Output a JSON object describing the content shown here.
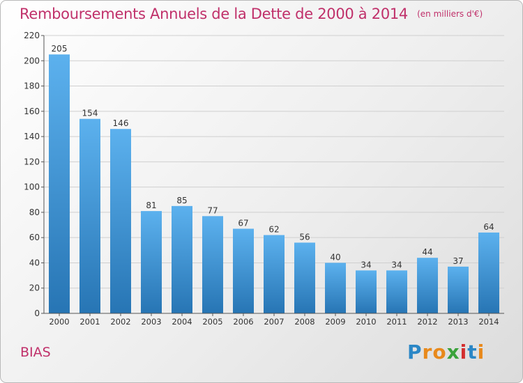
{
  "chart_data": {
    "type": "bar",
    "title": "Remboursements Annuels de la Dette de 2000 à 2014",
    "subtitle": "(en milliers d'€)",
    "categories": [
      "2000",
      "2001",
      "2002",
      "2003",
      "2004",
      "2005",
      "2006",
      "2007",
      "2008",
      "2009",
      "2010",
      "2011",
      "2012",
      "2013",
      "2014"
    ],
    "values": [
      205,
      154,
      146,
      81,
      85,
      77,
      67,
      62,
      56,
      40,
      34,
      34,
      44,
      37,
      64
    ],
    "ylim": [
      0,
      220
    ],
    "yticks": [
      0,
      20,
      40,
      60,
      80,
      100,
      120,
      140,
      160,
      180,
      200,
      220
    ],
    "grid": true,
    "bar_color_top": "#5cb1ee",
    "bar_color_bottom": "#2775b4"
  },
  "place_name": "BIAS",
  "brand": {
    "letters": [
      "P",
      "r",
      "o",
      "x",
      "i",
      "t",
      "i"
    ],
    "colors": [
      "#2b87c6",
      "#e8891b",
      "#e8891b",
      "#3aa23a",
      "#d32f2f",
      "#2b87c6",
      "#e8891b"
    ]
  }
}
